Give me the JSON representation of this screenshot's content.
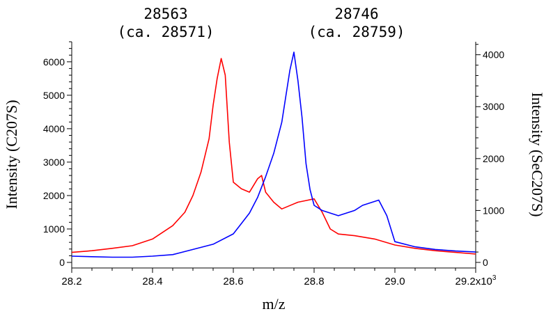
{
  "chart_data": {
    "type": "line",
    "annotations": [
      {
        "line1": "28563",
        "line2": "(ca. 28571)",
        "x": 28.563
      },
      {
        "line1": "28746",
        "line2": "(ca. 28759)",
        "x": 28.746
      }
    ],
    "xlabel": "m/z",
    "ylabel_left": "Intensity (C207S)",
    "ylabel_right": "Intensity (SeC207S)",
    "xlim": [
      28.2,
      29.2
    ],
    "ylim_left": [
      0,
      6600
    ],
    "ylim_right": [
      0,
      4250
    ],
    "x_ticks": [
      "28.2",
      "28.4",
      "28.6",
      "28.8",
      "29.0",
      "29.2x10"
    ],
    "x_tick_values": [
      28.2,
      28.4,
      28.6,
      28.8,
      29.0,
      29.2
    ],
    "x_exponent": "3",
    "y_ticks_left": [
      "0",
      "1000",
      "2000",
      "3000",
      "4000",
      "5000",
      "6000"
    ],
    "y_tick_values_left": [
      0,
      1000,
      2000,
      3000,
      4000,
      5000,
      6000
    ],
    "y_ticks_right": [
      "0",
      "1000",
      "2000",
      "3000",
      "4000"
    ],
    "y_tick_values_right": [
      0,
      1000,
      2000,
      3000,
      4000
    ],
    "series": [
      {
        "color": "#ff0000",
        "axis": "left",
        "x": [
          28.2,
          28.25,
          28.3,
          28.35,
          28.4,
          28.45,
          28.48,
          28.5,
          28.52,
          28.54,
          28.55,
          28.56,
          28.57,
          28.58,
          28.59,
          28.6,
          28.62,
          28.64,
          28.66,
          28.67,
          28.68,
          28.7,
          28.72,
          28.74,
          28.76,
          28.78,
          28.8,
          28.82,
          28.84,
          28.86,
          28.9,
          28.95,
          29.0,
          29.05,
          29.1,
          29.15,
          29.2
        ],
        "values": [
          300,
          350,
          420,
          500,
          700,
          1100,
          1500,
          2000,
          2700,
          3700,
          4700,
          5500,
          6100,
          5600,
          3600,
          2400,
          2200,
          2100,
          2500,
          2600,
          2100,
          1800,
          1600,
          1700,
          1800,
          1850,
          1900,
          1500,
          1000,
          850,
          800,
          700,
          520,
          420,
          350,
          300,
          250
        ]
      },
      {
        "color": "#0000ff",
        "axis": "right",
        "x": [
          28.2,
          28.25,
          28.3,
          28.35,
          28.4,
          28.45,
          28.5,
          28.55,
          28.6,
          28.62,
          28.64,
          28.66,
          28.68,
          28.7,
          28.72,
          28.73,
          28.74,
          28.75,
          28.76,
          28.77,
          28.78,
          28.79,
          28.8,
          28.82,
          28.84,
          28.86,
          28.88,
          28.9,
          28.92,
          28.94,
          28.96,
          28.98,
          29.0,
          29.05,
          29.1,
          29.15,
          29.2
        ],
        "values": [
          120,
          110,
          100,
          100,
          120,
          150,
          250,
          350,
          550,
          750,
          950,
          1250,
          1650,
          2100,
          2700,
          3200,
          3700,
          4050,
          3500,
          2800,
          1900,
          1400,
          1100,
          1000,
          950,
          900,
          950,
          1000,
          1100,
          1150,
          1200,
          900,
          400,
          300,
          250,
          220,
          200
        ]
      }
    ]
  }
}
